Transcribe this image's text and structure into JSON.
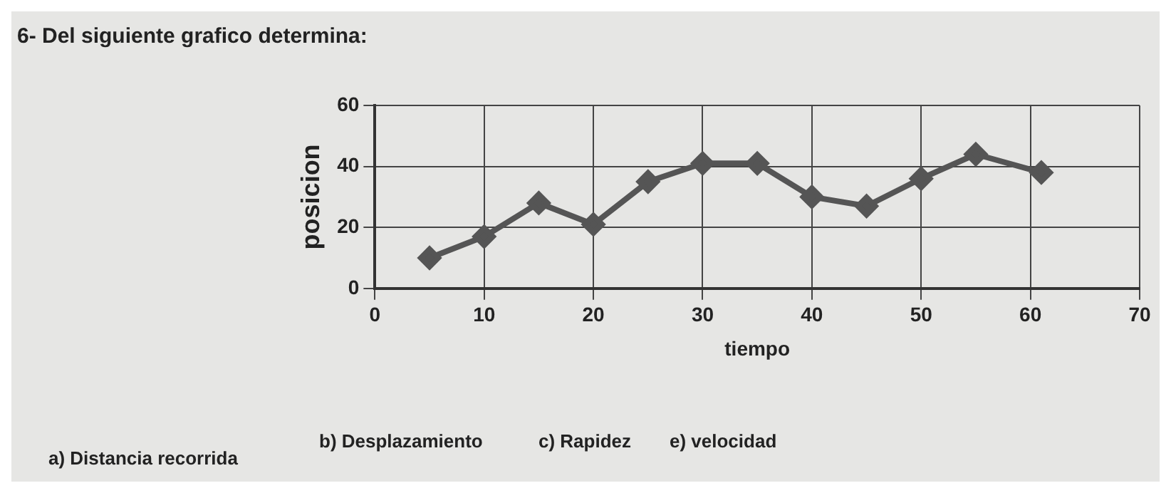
{
  "chart_data": {
    "type": "line",
    "title": "6- Del siguiente grafico determina:",
    "xlabel": "tiempo",
    "ylabel": "posicion",
    "x": [
      5,
      10,
      15,
      20,
      25,
      30,
      35,
      40,
      45,
      50,
      55,
      61
    ],
    "series": [
      {
        "color": "#555555",
        "values": [
          10,
          17,
          28,
          21,
          35,
          41,
          41,
          30,
          27,
          36,
          44,
          38
        ]
      }
    ],
    "xlim": [
      0,
      70
    ],
    "xticks": [
      0,
      10,
      20,
      30,
      40,
      50,
      60,
      70
    ],
    "ylim": [
      0,
      60
    ],
    "yticks": [
      0,
      20,
      40,
      60
    ],
    "grid": true,
    "legend": false,
    "marker": "diamond",
    "line_style": "solid",
    "annotations": [
      "a) Distancia recorrida",
      "b) Desplazamiento",
      "c) Rapidez",
      "e) velocidad"
    ]
  }
}
